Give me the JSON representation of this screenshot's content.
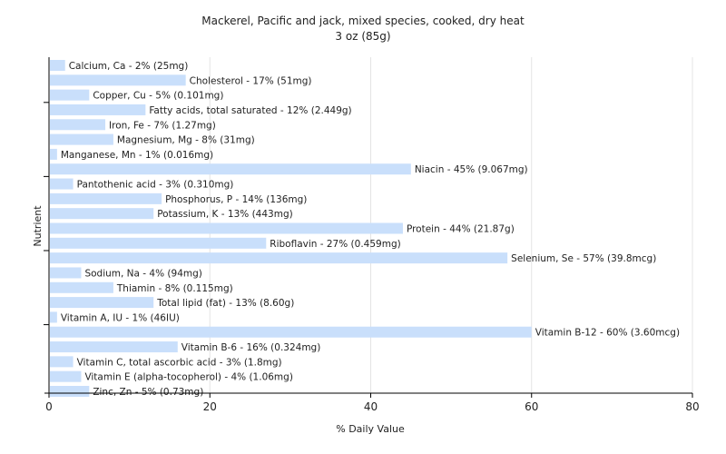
{
  "chart_data": {
    "type": "bar",
    "orientation": "horizontal",
    "title": "Mackerel, Pacific and jack, mixed species, cooked, dry heat",
    "subtitle": "3 oz (85g)",
    "xlabel": "% Daily Value",
    "ylabel": "Nutrient",
    "xlim": [
      0,
      80
    ],
    "xticks": [
      0,
      20,
      40,
      60,
      80
    ],
    "grid": true,
    "bar_color": "#c9dffb",
    "categories": [
      "Calcium, Ca",
      "Cholesterol",
      "Copper, Cu",
      "Fatty acids, total saturated",
      "Iron, Fe",
      "Magnesium, Mg",
      "Manganese, Mn",
      "Niacin",
      "Pantothenic acid",
      "Phosphorus, P",
      "Potassium, K",
      "Protein",
      "Riboflavin",
      "Selenium, Se",
      "Sodium, Na",
      "Thiamin",
      "Total lipid (fat)",
      "Vitamin A, IU",
      "Vitamin B-12",
      "Vitamin B-6",
      "Vitamin C, total ascorbic acid",
      "Vitamin E (alpha-tocopherol)",
      "Zinc, Zn"
    ],
    "values": [
      2,
      17,
      5,
      12,
      7,
      8,
      1,
      45,
      3,
      14,
      13,
      44,
      27,
      57,
      4,
      8,
      13,
      1,
      60,
      16,
      3,
      4,
      5
    ],
    "labels": [
      "Calcium, Ca - 2% (25mg)",
      "Cholesterol - 17% (51mg)",
      "Copper, Cu - 5% (0.101mg)",
      "Fatty acids, total saturated - 12% (2.449g)",
      "Iron, Fe - 7% (1.27mg)",
      "Magnesium, Mg - 8% (31mg)",
      "Manganese, Mn - 1% (0.016mg)",
      "Niacin - 45% (9.067mg)",
      "Pantothenic acid - 3% (0.310mg)",
      "Phosphorus, P - 14% (136mg)",
      "Potassium, K - 13% (443mg)",
      "Protein - 44% (21.87g)",
      "Riboflavin - 27% (0.459mg)",
      "Selenium, Se - 57% (39.8mcg)",
      "Sodium, Na - 4% (94mg)",
      "Thiamin - 8% (0.115mg)",
      "Total lipid (fat) - 13% (8.60g)",
      "Vitamin A, IU - 1% (46IU)",
      "Vitamin B-12 - 60% (3.60mcg)",
      "Vitamin B-6 - 16% (0.324mg)",
      "Vitamin C, total ascorbic acid - 3% (1.8mg)",
      "Vitamin E (alpha-tocopherol) - 4% (1.06mg)",
      "Zinc, Zn - 5% (0.73mg)"
    ]
  }
}
